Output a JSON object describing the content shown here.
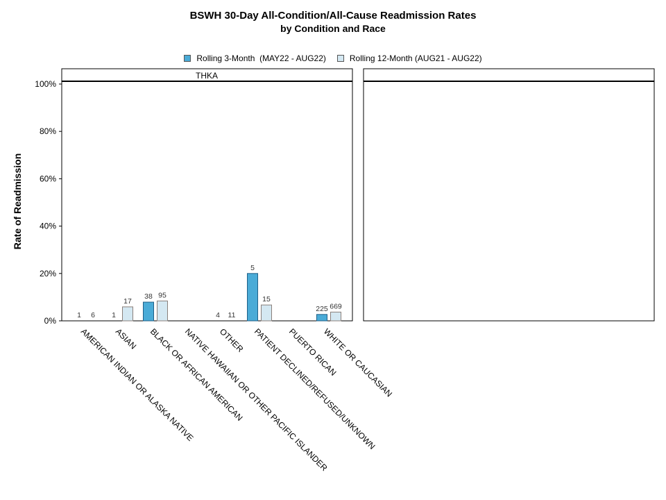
{
  "chart_data": {
    "type": "bar",
    "title": "BSWH 30-Day All-Condition/All-Cause Readmission Rates",
    "subtitle": "by Condition and Race",
    "ylabel": "Rate of Readmission",
    "ylim": [
      0,
      100
    ],
    "yticks": [
      "0%",
      "20%",
      "40%",
      "60%",
      "80%",
      "100%"
    ],
    "grid": false,
    "legend_position": "top",
    "panels": [
      {
        "label": "THKA"
      },
      {
        "label": ""
      }
    ],
    "categories": [
      "AMERICAN INDIAN OR ALASKA NATIVE",
      "ASIAN",
      "BLACK OR AFRICAN AMERICAN",
      "NATIVE HAWAIIAN OR OTHER PACIFIC ISLANDER",
      "OTHER",
      "PATIENT DECLINED/REFUSED/UNKNOWN",
      "PUERTO RICAN",
      "WHITE OR CAUCASIAN"
    ],
    "series": [
      {
        "name": "Rolling 3-Month  (MAY22 - AUG22)",
        "color": "#4aabd7",
        "values": [
          0,
          0,
          7.9,
          null,
          0,
          20.0,
          null,
          2.7
        ],
        "labels": [
          "1",
          "1",
          "38",
          "",
          "4",
          "5",
          "",
          "225"
        ]
      },
      {
        "name": "Rolling 12-Month (AUG21 - AUG22)",
        "color": "#d4e8f2",
        "values": [
          0,
          5.9,
          8.4,
          null,
          0,
          6.7,
          null,
          3.7
        ],
        "labels": [
          "6",
          "17",
          "95",
          "",
          "11",
          "15",
          "",
          "669"
        ]
      }
    ]
  }
}
